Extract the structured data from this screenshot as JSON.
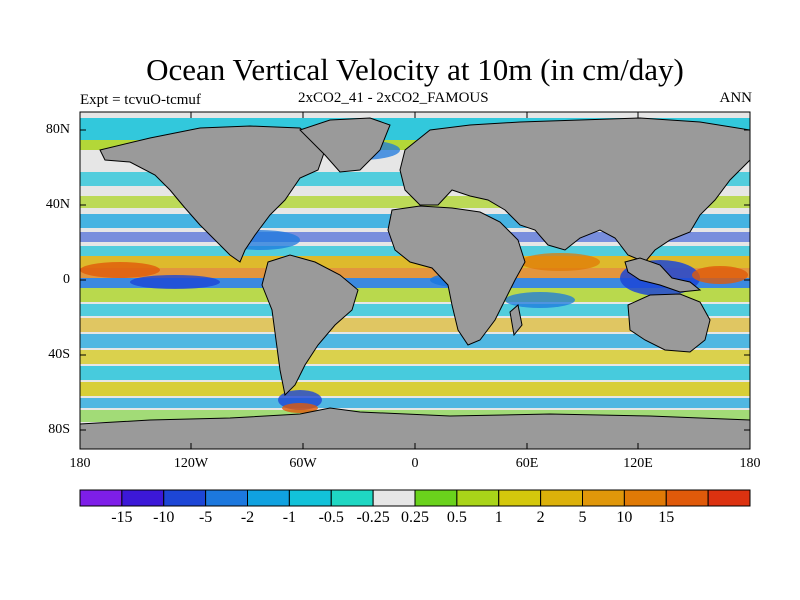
{
  "title": "Ocean Vertical Velocity at 10m (in cm/day)",
  "left_label": "Expt = tcvuO-tcmuf",
  "center_label": "2xCO2_41 - 2xCO2_FAMOUS",
  "right_label": "ANN",
  "lat_ticks": [
    "80N",
    "40N",
    "0",
    "40S",
    "80S"
  ],
  "lon_ticks": [
    "180",
    "120W",
    "60W",
    "0",
    "60E",
    "120E",
    "180"
  ],
  "colorbar": {
    "colors": [
      "#7e1ee8",
      "#3c18d8",
      "#1d46d6",
      "#1c78de",
      "#10a2e0",
      "#12c2d9",
      "#1fd7c3",
      "#e6e6e6",
      "#6ad21c",
      "#a9d419",
      "#d4c80c",
      "#dcb10a",
      "#e0970a",
      "#e07a06",
      "#e05a0a",
      "#dc3210"
    ],
    "labels": [
      "-15",
      "-10",
      "-5",
      "-2",
      "-1",
      "-0.5",
      "-0.25",
      "0.25",
      "0.5",
      "1",
      "2",
      "5",
      "10",
      "15"
    ]
  }
}
